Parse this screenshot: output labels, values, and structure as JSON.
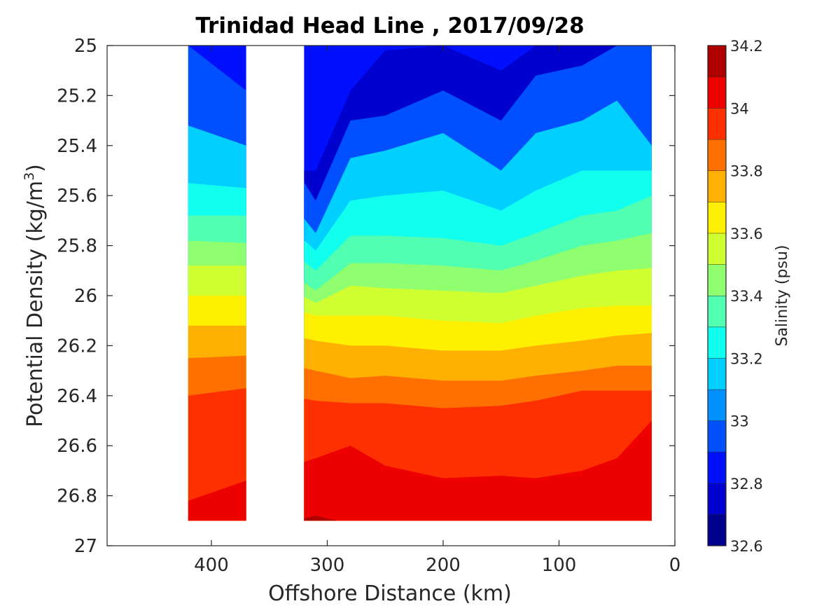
{
  "chart_data": {
    "type": "heatmap",
    "subtype": "filled-contour section",
    "title": "Trinidad Head Line , 2017/09/28",
    "xlabel": "Offshore Distance (km)",
    "ylabel": "Potential Density (kg/m",
    "ylabel_superscript": "3",
    "ylabel_close": ")",
    "x_axis_reversed": true,
    "y_axis_reversed": true,
    "xlim": [
      0,
      490
    ],
    "ylim": [
      25,
      27
    ],
    "xticks": [
      400,
      300,
      200,
      100,
      0
    ],
    "xtick_labels": [
      "400",
      "300",
      "200",
      "100",
      "0"
    ],
    "yticks": [
      25,
      25.2,
      25.4,
      25.6,
      25.8,
      26,
      26.2,
      26.4,
      26.6,
      26.8,
      27
    ],
    "ytick_labels": [
      "25",
      "25.2",
      "25.4",
      "25.6",
      "25.8",
      "26",
      "26.2",
      "26.4",
      "26.6",
      "26.8",
      "27"
    ],
    "data_gap_km": [
      320,
      370
    ],
    "data_coverage_km": [
      [
        370,
        420
      ],
      [
        20,
        320
      ]
    ],
    "bottom_density": 26.9,
    "colorbar": {
      "label": "Salinity (psu)",
      "range": [
        32.6,
        34.2
      ],
      "step": 0.1,
      "ticks": [
        32.6,
        32.8,
        33.0,
        33.2,
        33.4,
        33.6,
        33.8,
        34.0,
        34.2
      ],
      "tick_labels": [
        "32.6",
        "32.8",
        "33",
        "33.2",
        "33.4",
        "33.6",
        "33.8",
        "34",
        "34.2"
      ],
      "colors": [
        "#00008f",
        "#0000cf",
        "#0010ff",
        "#0050ff",
        "#0090ff",
        "#00cfff",
        "#10ffef",
        "#50ffaf",
        "#90ff6f",
        "#cfff30",
        "#fff000",
        "#ffb000",
        "#ff7000",
        "#ff3000",
        "#ef0000",
        "#af0000"
      ]
    },
    "salinity_contours": [
      {
        "salinity": 32.75,
        "profile": [
          [
            420,
            null
          ],
          [
            370,
            null
          ],
          [
            310,
            25.5
          ],
          [
            280,
            25.18
          ],
          [
            250,
            25.02
          ],
          [
            200,
            25.0
          ],
          [
            150,
            25.1
          ],
          [
            120,
            25.0
          ],
          [
            80,
            25.0
          ],
          [
            50,
            25.0
          ],
          [
            20,
            25.0
          ]
        ]
      },
      {
        "salinity": 32.95,
        "profile": [
          [
            420,
            25.0
          ],
          [
            370,
            25.18
          ],
          [
            310,
            25.62
          ],
          [
            280,
            25.3
          ],
          [
            250,
            25.28
          ],
          [
            200,
            25.18
          ],
          [
            150,
            25.3
          ],
          [
            120,
            25.12
          ],
          [
            80,
            25.08
          ],
          [
            50,
            25.0
          ],
          [
            20,
            25.0
          ]
        ]
      },
      {
        "salinity": 33.1,
        "profile": [
          [
            420,
            25.32
          ],
          [
            370,
            25.4
          ],
          [
            310,
            25.75
          ],
          [
            280,
            25.45
          ],
          [
            250,
            25.42
          ],
          [
            200,
            25.35
          ],
          [
            150,
            25.5
          ],
          [
            120,
            25.35
          ],
          [
            80,
            25.3
          ],
          [
            50,
            25.22
          ],
          [
            20,
            25.4
          ]
        ]
      },
      {
        "salinity": 33.2,
        "profile": [
          [
            420,
            25.55
          ],
          [
            370,
            25.57
          ],
          [
            310,
            25.82
          ],
          [
            280,
            25.62
          ],
          [
            250,
            25.6
          ],
          [
            200,
            25.58
          ],
          [
            150,
            25.66
          ],
          [
            120,
            25.58
          ],
          [
            80,
            25.5
          ],
          [
            50,
            25.5
          ],
          [
            20,
            25.5
          ]
        ]
      },
      {
        "salinity": 33.3,
        "profile": [
          [
            420,
            25.68
          ],
          [
            370,
            25.68
          ],
          [
            310,
            25.9
          ],
          [
            280,
            25.76
          ],
          [
            250,
            25.76
          ],
          [
            200,
            25.77
          ],
          [
            150,
            25.8
          ],
          [
            120,
            25.75
          ],
          [
            80,
            25.68
          ],
          [
            50,
            25.66
          ],
          [
            20,
            25.6
          ]
        ]
      },
      {
        "salinity": 33.4,
        "profile": [
          [
            420,
            25.78
          ],
          [
            370,
            25.79
          ],
          [
            310,
            25.98
          ],
          [
            280,
            25.87
          ],
          [
            250,
            25.87
          ],
          [
            200,
            25.88
          ],
          [
            150,
            25.9
          ],
          [
            120,
            25.86
          ],
          [
            80,
            25.8
          ],
          [
            50,
            25.78
          ],
          [
            20,
            25.75
          ]
        ]
      },
      {
        "salinity": 33.5,
        "profile": [
          [
            420,
            25.88
          ],
          [
            370,
            25.88
          ],
          [
            310,
            26.03
          ],
          [
            280,
            25.96
          ],
          [
            250,
            25.97
          ],
          [
            200,
            25.98
          ],
          [
            150,
            25.99
          ],
          [
            120,
            25.96
          ],
          [
            80,
            25.92
          ],
          [
            50,
            25.9
          ],
          [
            20,
            25.89
          ]
        ]
      },
      {
        "salinity": 33.6,
        "profile": [
          [
            420,
            26.0
          ],
          [
            370,
            26.0
          ],
          [
            310,
            26.08
          ],
          [
            280,
            26.08
          ],
          [
            250,
            26.08
          ],
          [
            200,
            26.1
          ],
          [
            150,
            26.11
          ],
          [
            120,
            26.08
          ],
          [
            80,
            26.05
          ],
          [
            50,
            26.04
          ],
          [
            20,
            26.04
          ]
        ]
      },
      {
        "salinity": 33.7,
        "profile": [
          [
            420,
            26.12
          ],
          [
            370,
            26.12
          ],
          [
            310,
            26.18
          ],
          [
            280,
            26.2
          ],
          [
            250,
            26.2
          ],
          [
            200,
            26.22
          ],
          [
            150,
            26.22
          ],
          [
            120,
            26.2
          ],
          [
            80,
            26.18
          ],
          [
            50,
            26.16
          ],
          [
            20,
            26.15
          ]
        ]
      },
      {
        "salinity": 33.8,
        "profile": [
          [
            420,
            26.25
          ],
          [
            370,
            26.24
          ],
          [
            310,
            26.3
          ],
          [
            280,
            26.33
          ],
          [
            250,
            26.32
          ],
          [
            200,
            26.34
          ],
          [
            150,
            26.34
          ],
          [
            120,
            26.32
          ],
          [
            80,
            26.3
          ],
          [
            50,
            26.28
          ],
          [
            20,
            26.28
          ]
        ]
      },
      {
        "salinity": 33.9,
        "profile": [
          [
            420,
            26.4
          ],
          [
            370,
            26.37
          ],
          [
            310,
            26.42
          ],
          [
            280,
            26.43
          ],
          [
            250,
            26.43
          ],
          [
            200,
            26.45
          ],
          [
            150,
            26.44
          ],
          [
            120,
            26.42
          ],
          [
            80,
            26.38
          ],
          [
            50,
            26.38
          ],
          [
            20,
            26.38
          ]
        ]
      },
      {
        "salinity": 34.0,
        "profile": [
          [
            420,
            26.82
          ],
          [
            370,
            26.74
          ],
          [
            310,
            26.65
          ],
          [
            280,
            26.6
          ],
          [
            250,
            26.68
          ],
          [
            200,
            26.73
          ],
          [
            150,
            26.72
          ],
          [
            120,
            26.73
          ],
          [
            80,
            26.7
          ],
          [
            50,
            26.65
          ],
          [
            20,
            26.5
          ]
        ]
      },
      {
        "salinity": 34.1,
        "profile": [
          [
            420,
            null
          ],
          [
            370,
            null
          ],
          [
            310,
            26.88
          ],
          [
            280,
            null
          ],
          [
            250,
            null
          ],
          [
            200,
            null
          ],
          [
            150,
            null
          ],
          [
            120,
            null
          ],
          [
            80,
            null
          ],
          [
            50,
            null
          ],
          [
            20,
            null
          ]
        ]
      }
    ]
  }
}
